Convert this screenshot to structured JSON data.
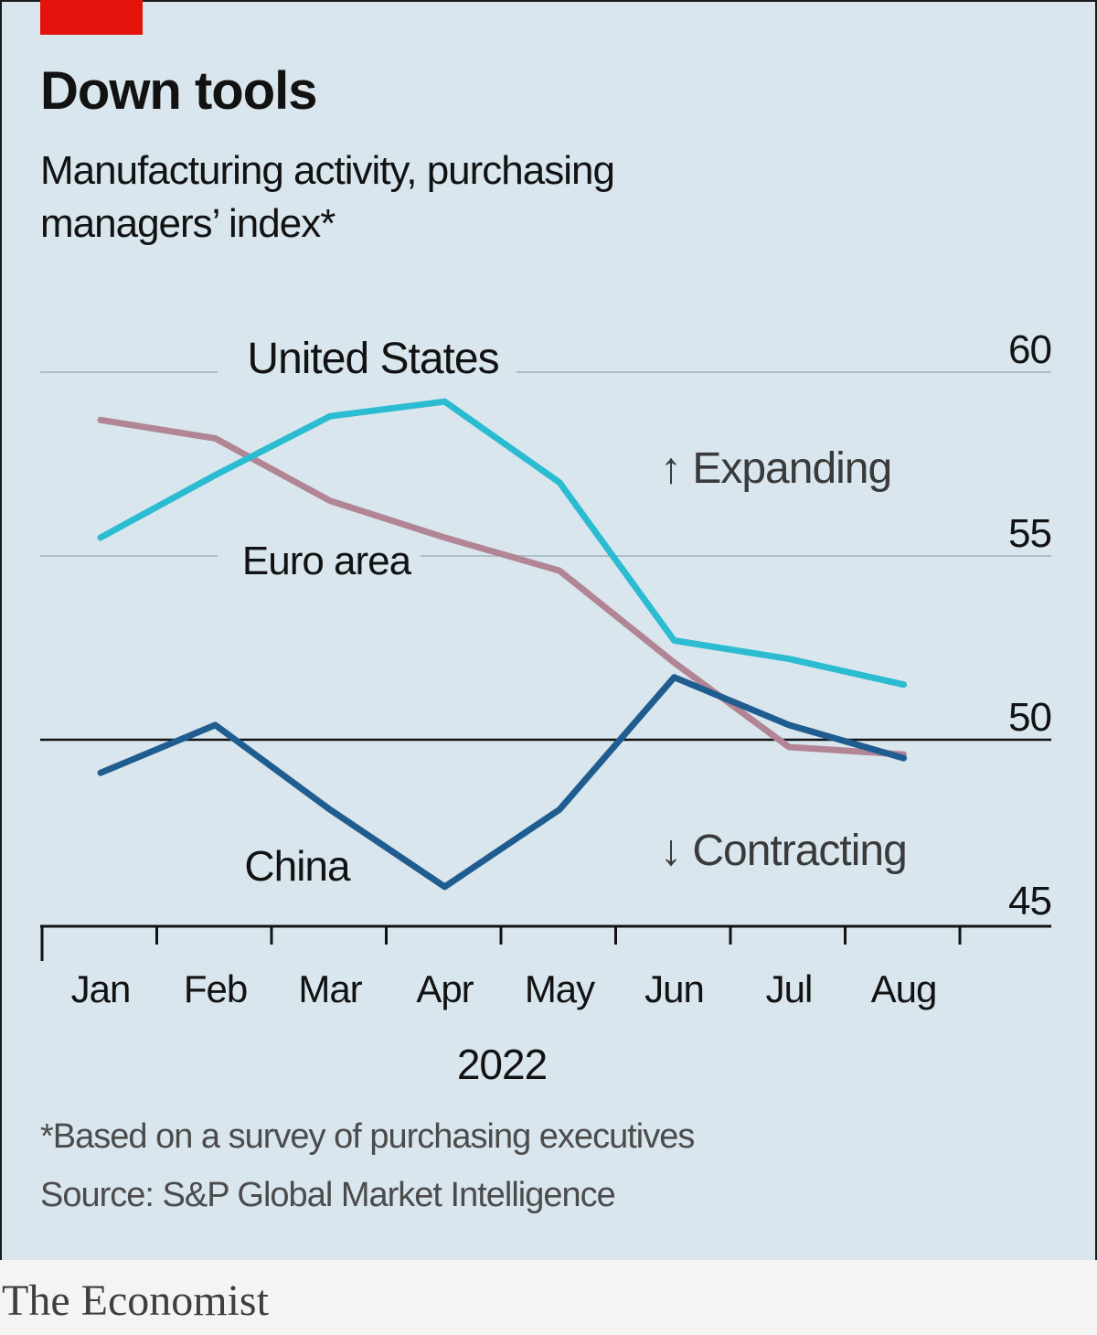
{
  "header": {
    "title": "Down tools",
    "subtitle": "Manufacturing activity, purchasing managers’ index*"
  },
  "footer": {
    "footnote": "*Based on a survey of purchasing executives",
    "source": "Source: S&P Global Market Intelligence",
    "brand": "The Economist"
  },
  "annotations": {
    "expanding": "↑ Expanding",
    "contracting": "↓ Contracting"
  },
  "colors": {
    "brand_red": "#e3120b",
    "united_states": "#2bbcd1",
    "euro_area": "#b28595",
    "china": "#1f5c8f",
    "threshold": "#121212",
    "grid": "#aebfcb"
  },
  "chart_data": {
    "type": "line",
    "title": "Down tools",
    "subtitle": "Manufacturing activity, purchasing managers’ index*",
    "categories": [
      "Jan",
      "Feb",
      "Mar",
      "Apr",
      "May",
      "Jun",
      "Jul",
      "Aug"
    ],
    "year_label": "2022",
    "yticks": [
      45,
      50,
      55,
      60
    ],
    "ylim": [
      45,
      60
    ],
    "threshold": 50,
    "threshold_labels": {
      "above": "↑ Expanding",
      "below": "↓ Contracting"
    },
    "xlabel": "2022",
    "ylabel": "",
    "series": [
      {
        "name": "United States",
        "color": "#2bbcd1",
        "values": [
          55.5,
          57.2,
          58.8,
          59.2,
          57.0,
          52.7,
          52.2,
          51.5
        ]
      },
      {
        "name": "Euro area",
        "color": "#b28595",
        "values": [
          58.7,
          58.2,
          56.5,
          55.5,
          54.6,
          52.1,
          49.8,
          49.6
        ]
      },
      {
        "name": "China",
        "color": "#1f5c8f",
        "values": [
          49.1,
          50.4,
          48.1,
          46.0,
          48.1,
          51.7,
          50.4,
          49.5
        ]
      }
    ]
  }
}
